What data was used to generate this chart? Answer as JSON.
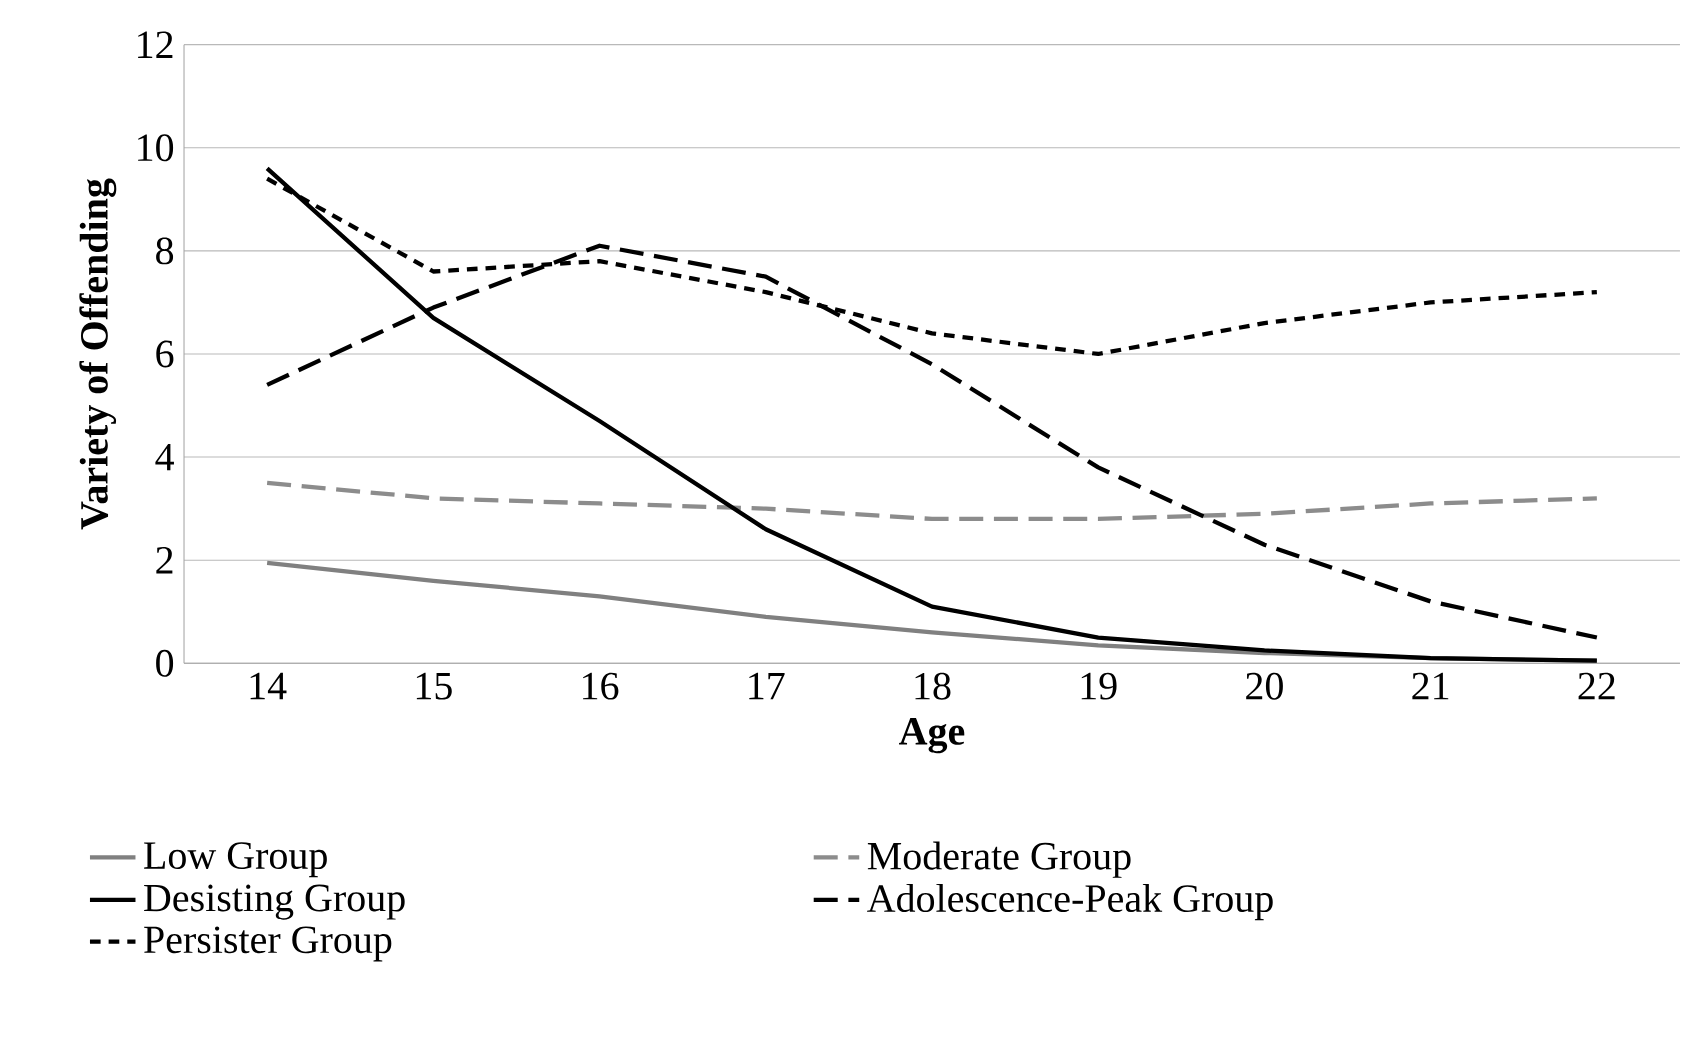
{
  "chart_data": {
    "type": "line",
    "xlabel": "Age",
    "ylabel": "Variety of Offending",
    "categories": [
      "14",
      "15",
      "16",
      "17",
      "18",
      "19",
      "20",
      "21",
      "22"
    ],
    "series": [
      {
        "name": "Low Group",
        "color": "#808080",
        "line_style": "solid",
        "values": [
          1.95,
          1.6,
          1.3,
          0.9,
          0.6,
          0.35,
          0.2,
          0.1,
          0.05
        ]
      },
      {
        "name": "Moderate Group",
        "color": "#8c8c8c",
        "line_style": "dashed",
        "values": [
          3.5,
          3.2,
          3.1,
          3.0,
          2.8,
          2.8,
          2.9,
          3.1,
          3.2
        ]
      },
      {
        "name": "Desisting Group",
        "color": "#000000",
        "line_style": "solid",
        "values": [
          9.6,
          6.7,
          4.7,
          2.6,
          1.1,
          0.5,
          0.25,
          0.1,
          0.05
        ]
      },
      {
        "name": "Adolescence-Peak Group",
        "color": "#000000",
        "line_style": "dashed",
        "values": [
          5.4,
          6.9,
          8.1,
          7.5,
          5.8,
          3.8,
          2.3,
          1.2,
          0.5
        ]
      },
      {
        "name": "Persister Group",
        "color": "#000000",
        "line_style": "dotted",
        "values": [
          9.4,
          7.6,
          7.8,
          7.2,
          6.4,
          6.0,
          6.6,
          7.0,
          7.2
        ]
      }
    ],
    "ylim": [
      0,
      12
    ],
    "yticks": [
      0,
      2,
      4,
      6,
      8,
      10,
      12
    ],
    "grid": "y",
    "legend": "bottom",
    "marker": "none"
  }
}
